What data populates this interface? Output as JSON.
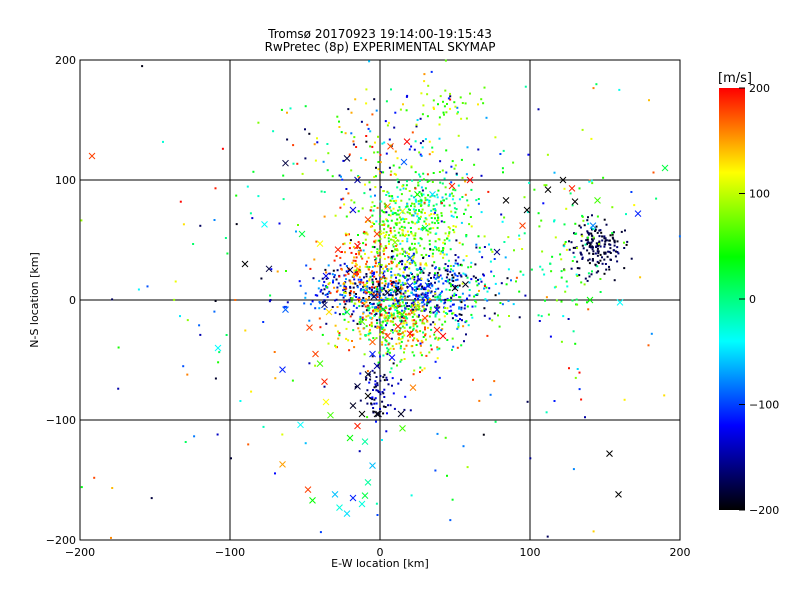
{
  "chart_data": {
    "type": "scatter",
    "title": "Tromsø 20170923 19:14:00-19:15:43",
    "subtitle": "RwPretec (8p) EXPERIMENTAL SKYMAP",
    "xlabel": "E-W location [km]",
    "ylabel": "N-S location [km]",
    "xlim": [
      -200,
      200
    ],
    "ylim": [
      -200,
      200
    ],
    "xticks": [
      -200,
      -100,
      0,
      100,
      200
    ],
    "yticks": [
      -200,
      -100,
      0,
      100,
      200
    ],
    "grid": true,
    "colorbar": {
      "label": "[m/s]",
      "range": [
        -200,
        200
      ],
      "ticks": [
        200,
        100,
        0,
        -100,
        -200
      ],
      "colors": [
        "#ff0000",
        "#ffff00",
        "#00ff00",
        "#00ffff",
        "#0000ff",
        "#000000"
      ]
    },
    "series": [
      {
        "marker": "x",
        "points": [
          [
            -192,
            120,
            180
          ],
          [
            -63,
            114,
            -180
          ],
          [
            -90,
            30,
            -200
          ],
          [
            -74,
            26,
            -180
          ],
          [
            -63,
            -8,
            -90
          ],
          [
            -65,
            -58,
            -110
          ],
          [
            -108,
            -40,
            -40
          ],
          [
            -77,
            63,
            -40
          ],
          [
            -52,
            55,
            20
          ],
          [
            -40,
            47,
            120
          ],
          [
            -37,
            -4,
            -170
          ],
          [
            -34,
            -10,
            130
          ],
          [
            -47,
            -23,
            180
          ],
          [
            -43,
            -45,
            180
          ],
          [
            -40,
            -53,
            60
          ],
          [
            -37,
            -68,
            190
          ],
          [
            -36,
            -85,
            120
          ],
          [
            -33,
            -96,
            60
          ],
          [
            -53,
            -104,
            -40
          ],
          [
            -65,
            -137,
            150
          ],
          [
            -48,
            -158,
            180
          ],
          [
            -45,
            -167,
            40
          ],
          [
            -30,
            -162,
            -60
          ],
          [
            -27,
            -173,
            -30
          ],
          [
            -22,
            -178,
            -50
          ],
          [
            -18,
            -165,
            -110
          ],
          [
            -12,
            -170,
            -30
          ],
          [
            -10,
            -163,
            20
          ],
          [
            -8,
            -152,
            -10
          ],
          [
            -5,
            -138,
            -60
          ],
          [
            -20,
            -115,
            40
          ],
          [
            -15,
            -105,
            190
          ],
          [
            -10,
            -118,
            -10
          ],
          [
            -2,
            -95,
            -200
          ],
          [
            -8,
            -80,
            -200
          ],
          [
            -15,
            -72,
            -180
          ],
          [
            -18,
            -88,
            -190
          ],
          [
            -8,
            -62,
            -190
          ],
          [
            -2,
            -55,
            -150
          ],
          [
            -5,
            -45,
            -110
          ],
          [
            8,
            -48,
            -120
          ],
          [
            -5,
            -35,
            170
          ],
          [
            5,
            -30,
            180
          ],
          [
            12,
            -22,
            190
          ],
          [
            20,
            -28,
            200
          ],
          [
            30,
            -15,
            180
          ],
          [
            42,
            -30,
            200
          ],
          [
            38,
            -25,
            190
          ],
          [
            15,
            -107,
            60
          ],
          [
            22,
            -73,
            160
          ],
          [
            -4,
            3,
            -180
          ],
          [
            5,
            6,
            -190
          ],
          [
            12,
            8,
            -200
          ],
          [
            20,
            12,
            -130
          ],
          [
            30,
            3,
            -110
          ],
          [
            38,
            -8,
            -130
          ],
          [
            50,
            10,
            -200
          ],
          [
            57,
            13,
            -190
          ],
          [
            32,
            12,
            -110
          ],
          [
            25,
            -5,
            90
          ],
          [
            15,
            -12,
            60
          ],
          [
            2,
            -8,
            40
          ],
          [
            -12,
            -18,
            70
          ],
          [
            -22,
            -10,
            20
          ],
          [
            -20,
            25,
            -180
          ],
          [
            -28,
            42,
            190
          ],
          [
            -15,
            45,
            200
          ],
          [
            -8,
            67,
            180
          ],
          [
            -2,
            55,
            180
          ],
          [
            5,
            78,
            160
          ],
          [
            15,
            74,
            110
          ],
          [
            10,
            48,
            80
          ],
          [
            20,
            35,
            -90
          ],
          [
            30,
            60,
            20
          ],
          [
            25,
            88,
            40
          ],
          [
            35,
            88,
            -50
          ],
          [
            48,
            95,
            190
          ],
          [
            60,
            100,
            200
          ],
          [
            16,
            115,
            -90
          ],
          [
            7,
            128,
            180
          ],
          [
            -22,
            118,
            -180
          ],
          [
            18,
            132,
            200
          ],
          [
            -15,
            100,
            -150
          ],
          [
            -18,
            75,
            -130
          ],
          [
            -36,
            20,
            -130
          ],
          [
            84,
            83,
            -200
          ],
          [
            98,
            75,
            -200
          ],
          [
            112,
            92,
            -200
          ],
          [
            122,
            100,
            -200
          ],
          [
            128,
            93,
            190
          ],
          [
            130,
            82,
            -200
          ],
          [
            145,
            83,
            60
          ],
          [
            142,
            62,
            -80
          ],
          [
            172,
            72,
            -110
          ],
          [
            190,
            110,
            20
          ],
          [
            160,
            -2,
            -40
          ],
          [
            140,
            0,
            40
          ],
          [
            153,
            -128,
            -200
          ],
          [
            159,
            -162,
            -200
          ],
          [
            78,
            40,
            -160
          ],
          [
            95,
            62,
            180
          ],
          [
            -1,
            -95,
            -190
          ],
          [
            14,
            -95,
            -190
          ],
          [
            -12,
            -95,
            -200
          ]
        ]
      },
      {
        "marker": "dot",
        "clusters": [
          {
            "cx": 8,
            "cy": 8,
            "sx": 28,
            "sy": 12,
            "n": 520,
            "color_range": [
              -200,
              -60
            ]
          },
          {
            "cx": 10,
            "cy": -18,
            "sx": 18,
            "sy": 16,
            "n": 380,
            "color_range": [
              -20,
              200
            ]
          },
          {
            "cx": 18,
            "cy": 55,
            "sx": 18,
            "sy": 24,
            "n": 360,
            "color_range": [
              20,
              130
            ]
          },
          {
            "cx": 28,
            "cy": 80,
            "sx": 16,
            "sy": 10,
            "n": 120,
            "color_range": [
              -60,
              60
            ]
          },
          {
            "cx": 45,
            "cy": 10,
            "sx": 20,
            "sy": 22,
            "n": 200,
            "color_range": [
              -200,
              60
            ]
          },
          {
            "cx": 145,
            "cy": 45,
            "sx": 10,
            "sy": 11,
            "n": 170,
            "color_range": [
              -200,
              -160
            ]
          },
          {
            "cx": 120,
            "cy": 40,
            "sx": 22,
            "sy": 35,
            "n": 110,
            "color_range": [
              -40,
              120
            ]
          },
          {
            "cx": -12,
            "cy": 20,
            "sx": 14,
            "sy": 18,
            "n": 160,
            "color_range": [
              120,
              200
            ]
          },
          {
            "cx": 0,
            "cy": -75,
            "sx": 8,
            "sy": 14,
            "n": 70,
            "color_range": [
              -200,
              -110
            ]
          },
          {
            "cx": 5,
            "cy": 120,
            "sx": 30,
            "sy": 30,
            "n": 150,
            "color_range": [
              -200,
              200
            ]
          },
          {
            "cx": 0,
            "cy": 0,
            "sx": 110,
            "sy": 110,
            "n": 260,
            "color_range": [
              -200,
              200
            ]
          },
          {
            "cx": 40,
            "cy": 160,
            "sx": 15,
            "sy": 8,
            "n": 35,
            "color_range": [
              40,
              130
            ]
          }
        ]
      }
    ]
  }
}
